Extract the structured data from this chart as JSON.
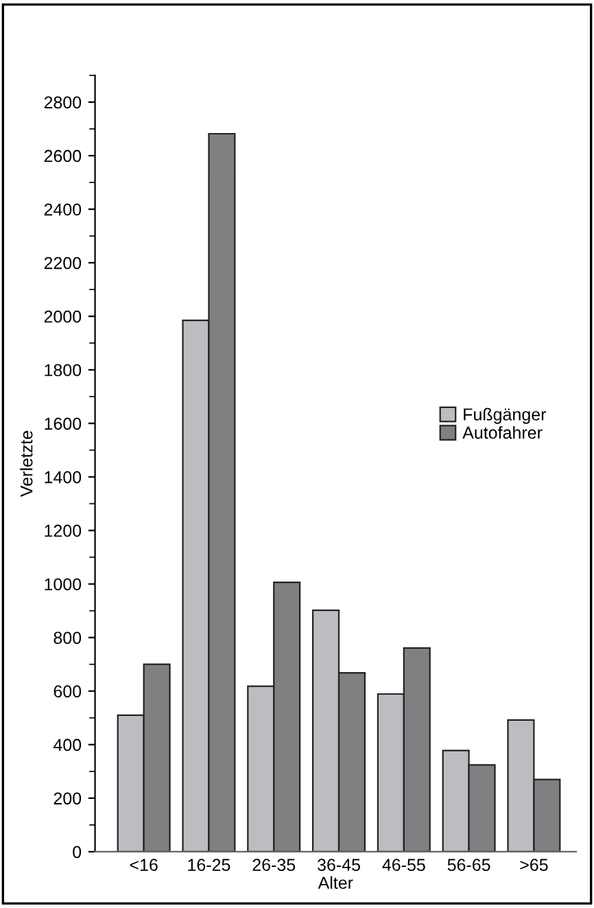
{
  "chart_data": {
    "type": "bar",
    "xlabel": "Alter",
    "ylabel": "Verletzte",
    "categories": [
      "<16",
      "16-25",
      "26-35",
      "36-45",
      "46-55",
      "56-65",
      ">65"
    ],
    "series": [
      {
        "name": "Fußgänger",
        "color": "#bcbdc1",
        "values": [
          510,
          1985,
          618,
          902,
          589,
          378,
          492
        ]
      },
      {
        "name": "Autofahrer",
        "color": "#808083",
        "values": [
          700,
          2682,
          1006,
          668,
          761,
          324,
          270
        ]
      }
    ],
    "ylim": [
      0,
      2900
    ],
    "yticks": [
      0,
      200,
      400,
      600,
      800,
      1000,
      1200,
      1400,
      1600,
      1800,
      2000,
      2200,
      2400,
      2600,
      2800
    ],
    "grid": false,
    "legend": "right"
  }
}
